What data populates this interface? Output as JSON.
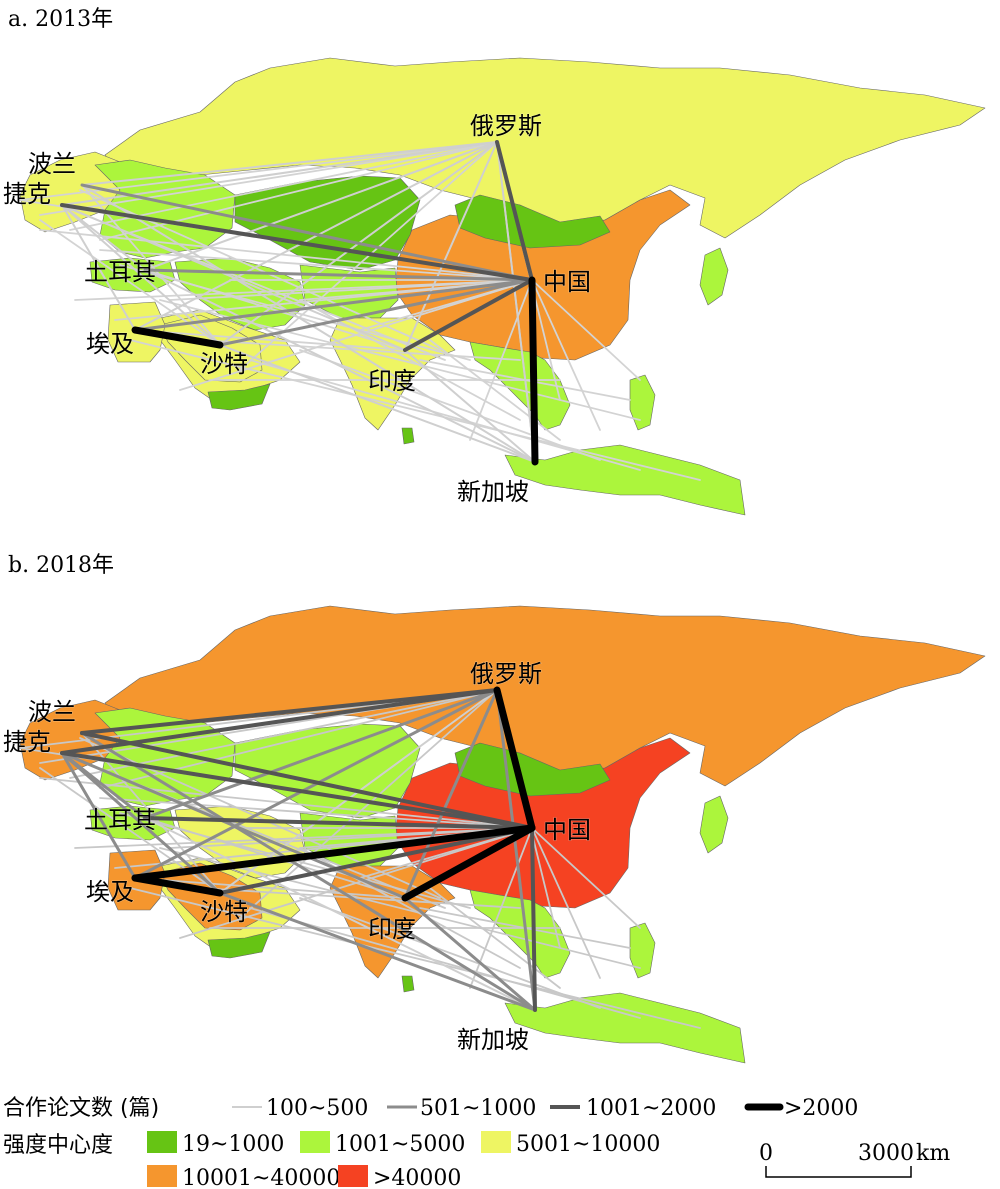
{
  "maps": [
    {
      "title": "a. 2013年",
      "colors": {
        "russia": "#eef563",
        "china": "#f5962e",
        "mongolia": "#66c414",
        "kazakh": "#66c414",
        "centralasia": "#acf53c",
        "westeurope": "#eef563",
        "easteurope": "#acf53c",
        "turkey": "#acf53c",
        "iran": "#acf53c",
        "arabia": "#eef563",
        "saudi": "#eef563",
        "yemen": "#66c414",
        "egypt": "#eef563",
        "india": "#eef563",
        "southeastasia": "#acf53c",
        "indonesia": "#acf53c",
        "philippines": "#acf53c",
        "japan": "#acf53c",
        "srilanka": "#66c414"
      },
      "links": [
        {
          "from": "czech",
          "to": "russia",
          "cls": 1
        },
        {
          "from": "poland",
          "to": "russia",
          "cls": 1
        },
        {
          "from": "turkey",
          "to": "russia",
          "cls": 1
        },
        {
          "from": "egypt",
          "to": "russia",
          "cls": 1
        },
        {
          "from": "saudi",
          "to": "russia",
          "cls": 1
        },
        {
          "from": "india",
          "to": "russia",
          "cls": 1
        },
        {
          "from": "czech",
          "to": "china",
          "cls": 3
        },
        {
          "from": "poland",
          "to": "china",
          "cls": 2
        },
        {
          "from": "turkey",
          "to": "china",
          "cls": 2
        },
        {
          "from": "egypt",
          "to": "china",
          "cls": 2
        },
        {
          "from": "saudi",
          "to": "china",
          "cls": 2
        },
        {
          "from": "india",
          "to": "china",
          "cls": 3
        },
        {
          "from": "russia",
          "to": "china",
          "cls": 3
        },
        {
          "from": "china",
          "to": "singapore",
          "cls": 4
        },
        {
          "from": "egypt",
          "to": "saudi",
          "cls": 4
        },
        {
          "from": "czech",
          "to": "turkey",
          "cls": 1
        },
        {
          "from": "czech",
          "to": "egypt",
          "cls": 1
        },
        {
          "from": "czech",
          "to": "saudi",
          "cls": 1
        },
        {
          "from": "poland",
          "to": "singapore",
          "cls": 1
        },
        {
          "from": "turkey",
          "to": "singapore",
          "cls": 1
        },
        {
          "from": "saudi",
          "to": "singapore",
          "cls": 1
        },
        {
          "from": "india",
          "to": "singapore",
          "cls": 1
        },
        {
          "from": "russia",
          "to": "singapore",
          "cls": 1
        },
        {
          "from": "czech",
          "to": "india",
          "cls": 1
        }
      ]
    },
    {
      "title": "b. 2018年",
      "colors": {
        "russia": "#f5962e",
        "china": "#f54222",
        "mongolia": "#66c414",
        "kazakh": "#acf53c",
        "centralasia": "#acf53c",
        "westeurope": "#f5962e",
        "easteurope": "#acf53c",
        "turkey": "#acf53c",
        "iran": "#eef563",
        "arabia": "#eef563",
        "saudi": "#f5962e",
        "yemen": "#66c414",
        "egypt": "#f5962e",
        "india": "#f5962e",
        "southeastasia": "#acf53c",
        "indonesia": "#acf53c",
        "philippines": "#acf53c",
        "japan": "#acf53c",
        "srilanka": "#66c414"
      },
      "links": [
        {
          "from": "czech",
          "to": "russia",
          "cls": 3
        },
        {
          "from": "poland",
          "to": "russia",
          "cls": 3
        },
        {
          "from": "turkey",
          "to": "russia",
          "cls": 2
        },
        {
          "from": "egypt",
          "to": "russia",
          "cls": 2
        },
        {
          "from": "saudi",
          "to": "russia",
          "cls": 1
        },
        {
          "from": "india",
          "to": "russia",
          "cls": 2
        },
        {
          "from": "czech",
          "to": "china",
          "cls": 3
        },
        {
          "from": "poland",
          "to": "china",
          "cls": 3
        },
        {
          "from": "turkey",
          "to": "china",
          "cls": 3
        },
        {
          "from": "egypt",
          "to": "china",
          "cls": 4
        },
        {
          "from": "saudi",
          "to": "china",
          "cls": 3
        },
        {
          "from": "india",
          "to": "china",
          "cls": 4
        },
        {
          "from": "russia",
          "to": "china",
          "cls": 4
        },
        {
          "from": "china",
          "to": "singapore",
          "cls": 3
        },
        {
          "from": "egypt",
          "to": "saudi",
          "cls": 4
        },
        {
          "from": "czech",
          "to": "turkey",
          "cls": 2
        },
        {
          "from": "czech",
          "to": "egypt",
          "cls": 2
        },
        {
          "from": "czech",
          "to": "saudi",
          "cls": 2
        },
        {
          "from": "poland",
          "to": "singapore",
          "cls": 2
        },
        {
          "from": "turkey",
          "to": "singapore",
          "cls": 1
        },
        {
          "from": "saudi",
          "to": "singapore",
          "cls": 2
        },
        {
          "from": "india",
          "to": "singapore",
          "cls": 2
        },
        {
          "from": "russia",
          "to": "singapore",
          "cls": 2
        },
        {
          "from": "czech",
          "to": "india",
          "cls": 2
        }
      ]
    }
  ],
  "city_labels": {
    "russia": "俄罗斯",
    "poland": "波兰",
    "czech": "捷克",
    "china": "中国",
    "turkey": "土耳其",
    "egypt": "埃及",
    "saudi": "沙特",
    "india": "印度",
    "singapore": "新加坡"
  },
  "legend": {
    "line_title": "合作论文数 (篇)",
    "line_classes": [
      {
        "label": "100~500",
        "color": "#cfcfcf"
      },
      {
        "label": "501~1000",
        "color": "#8c8c8c"
      },
      {
        "label": "1001~2000",
        "color": "#555555"
      },
      {
        "label": ">2000",
        "color": "#000000"
      }
    ],
    "fill_title": "强度中心度",
    "fill_classes": [
      {
        "label": "19~1000",
        "color": "#66c414"
      },
      {
        "label": "1001~5000",
        "color": "#acf53c"
      },
      {
        "label": "5001~10000",
        "color": "#eef563"
      },
      {
        "label": "10001~40000",
        "color": "#f5962e"
      },
      {
        "label": ">40000",
        "color": "#f54222"
      }
    ]
  },
  "scalebar": {
    "start": "0",
    "end": "3000",
    "unit": "km"
  }
}
